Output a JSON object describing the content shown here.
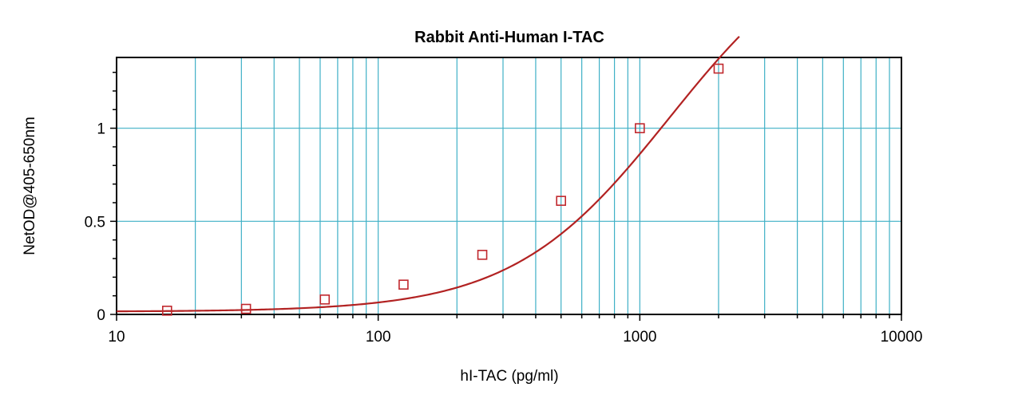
{
  "chart_data": {
    "type": "scatter",
    "title": "Rabbit Anti-Human I-TAC",
    "xlabel": "hI-TAC (pg/ml)",
    "ylabel": "NetOD@405-650nm",
    "x_scale": "log",
    "xlim": [
      10,
      10000
    ],
    "ylim": [
      0,
      1.38
    ],
    "x_ticks": [
      10,
      100,
      1000,
      10000
    ],
    "x_tick_labels": [
      "10",
      "100",
      "1000",
      "10000"
    ],
    "y_ticks": [
      0,
      0.5,
      1
    ],
    "y_tick_labels": [
      "0",
      "0.5",
      "1"
    ],
    "grid": true,
    "grid_color": "#3fb0c6",
    "series": [
      {
        "points": [
          {
            "x": 15.6,
            "y": 0.02
          },
          {
            "x": 31.25,
            "y": 0.03
          },
          {
            "x": 62.5,
            "y": 0.08
          },
          {
            "x": 125,
            "y": 0.16
          },
          {
            "x": 250,
            "y": 0.32
          },
          {
            "x": 500,
            "y": 0.61
          },
          {
            "x": 1000,
            "y": 1.0
          },
          {
            "x": 2000,
            "y": 1.32
          }
        ],
        "marker": "open-square",
        "color": "#c0282d",
        "fit_curve": {
          "model": "4PL",
          "bottom": 0.0147,
          "top": 2.1,
          "ec50": 1300,
          "hill": 1.45,
          "color": "#b22222"
        }
      }
    ]
  }
}
